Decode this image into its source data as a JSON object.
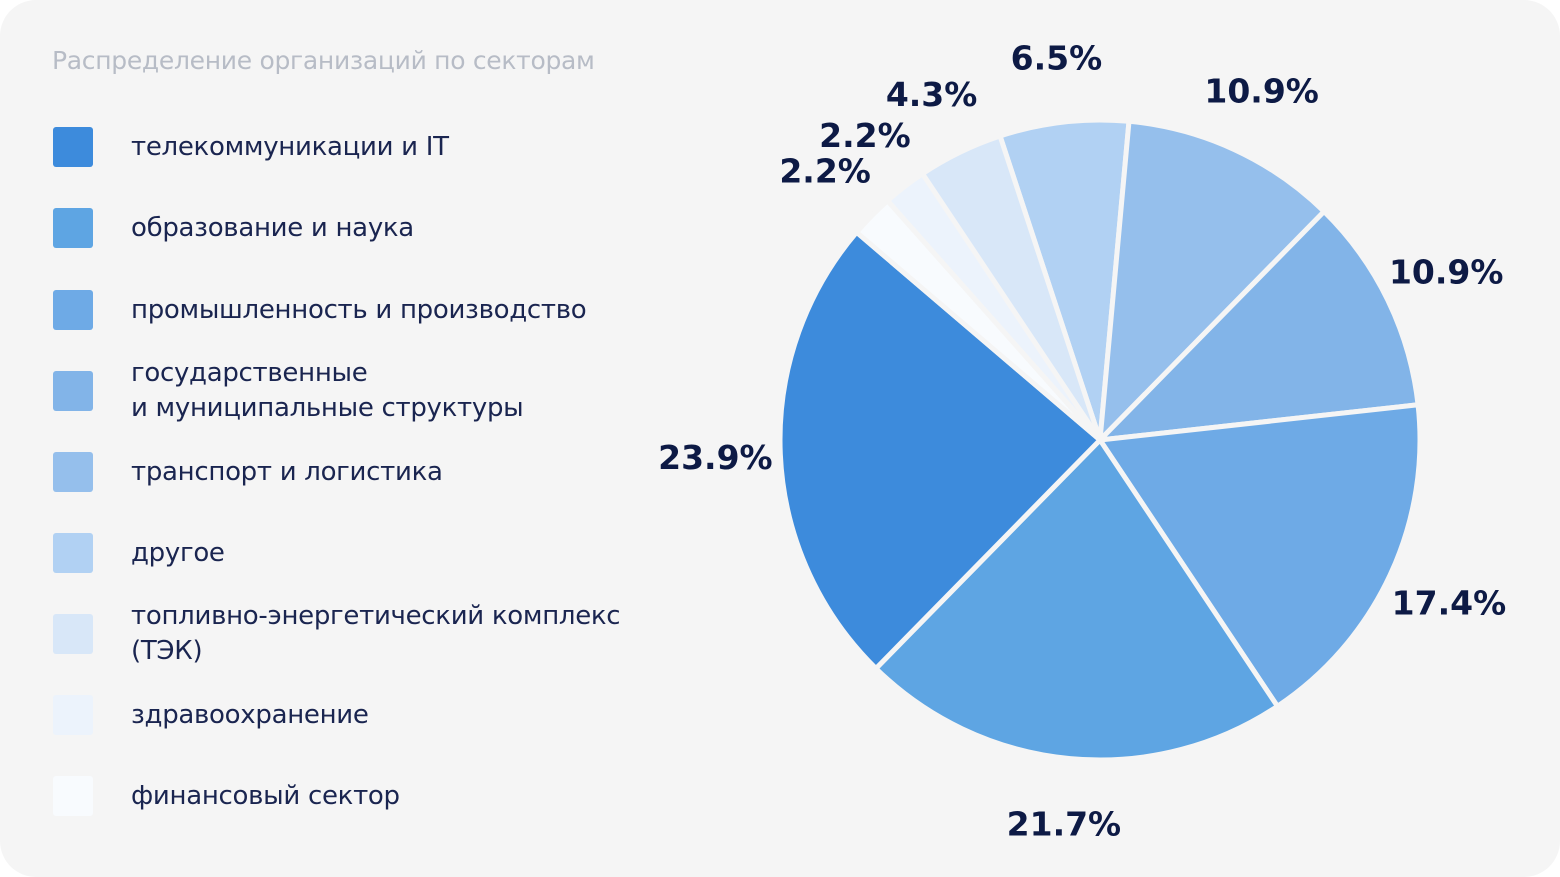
{
  "chart_data": {
    "type": "pie",
    "title": "Распределение организаций по секторам",
    "start_angle_deg": -18.2,
    "direction": "clockwise",
    "legend_placement": "left",
    "slices": [
      {
        "label": "телекоммуникации и IT",
        "value": 23.9,
        "display": "23.9%",
        "color": "#3d8bdc"
      },
      {
        "label": "образование и наука",
        "value": 21.7,
        "display": "21.7%",
        "color": "#5ea5e3"
      },
      {
        "label": "промышленность и производство",
        "value": 17.4,
        "display": "17.4%",
        "color": "#6eaae6"
      },
      {
        "label": "государственные\nи муниципальные структуры",
        "value": 10.9,
        "display": "10.9%",
        "color": "#82b4e8"
      },
      {
        "label": "транспорт и логистика",
        "value": 10.9,
        "display": "10.9%",
        "color": "#95bfec"
      },
      {
        "label": "другое",
        "value": 6.5,
        "display": "6.5%",
        "color": "#b1d1f3"
      },
      {
        "label": "топливно-энергетический комплекс\n(ТЭК)",
        "value": 4.3,
        "display": "4.3%",
        "color": "#d8e7f8"
      },
      {
        "label": "здравоохранение",
        "value": 2.2,
        "display": "2.2%",
        "color": "#ecf3fc"
      },
      {
        "label": "финансовый сектор",
        "value": 2.2,
        "display": "2.2%",
        "color": "#f8fbfe"
      }
    ],
    "pie_order": [
      "другое",
      "транспорт и логистика",
      "государственные\nи муниципальные структуры",
      "промышленность и производство",
      "образование и наука",
      "телекоммуникации и IT",
      "финансовый сектор",
      "здравоохранение",
      "топливно-энергетический комплекс\n(ТЭК)"
    ]
  }
}
